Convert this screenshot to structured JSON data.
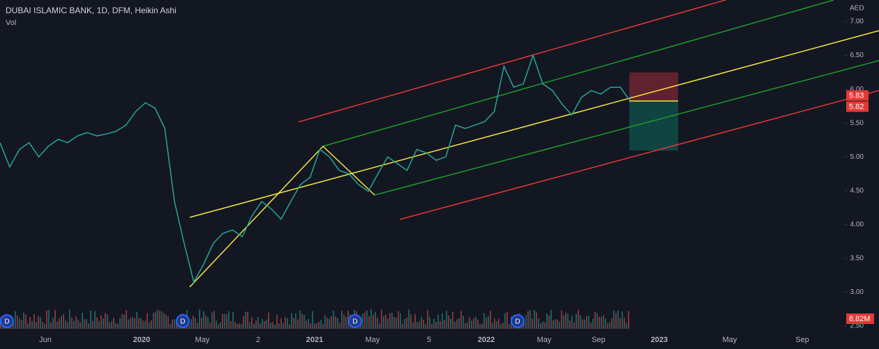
{
  "header": {
    "title": "DUBAI ISLAMIC BANK, 1D, DFM, Heikin Ashi",
    "volume_label": "Vol"
  },
  "chart_data": {
    "type": "line",
    "currency": "AED",
    "color": "#26a69a",
    "x_labels": [
      "Jun",
      "2020",
      "May",
      "2",
      "2021",
      "May",
      "5",
      "2022",
      "May",
      "Sep",
      "2023",
      "May",
      "Sep"
    ],
    "values": [
      5.21,
      4.85,
      5.11,
      5.21,
      5.0,
      5.16,
      5.26,
      5.21,
      5.31,
      5.36,
      5.31,
      5.34,
      5.38,
      5.47,
      5.67,
      5.8,
      5.72,
      5.42,
      4.34,
      3.72,
      3.15,
      3.41,
      3.72,
      3.87,
      3.92,
      3.82,
      4.13,
      4.34,
      4.23,
      4.08,
      4.34,
      4.59,
      4.7,
      5.11,
      5.0,
      4.8,
      4.75,
      4.59,
      4.49,
      4.75,
      5.0,
      4.9,
      4.8,
      5.11,
      5.06,
      4.95,
      5.0,
      5.47,
      5.42,
      5.47,
      5.52,
      5.67,
      6.34,
      6.03,
      6.08,
      6.5,
      6.08,
      5.98,
      5.78,
      5.62,
      5.88,
      5.98,
      5.93,
      6.03,
      6.03,
      5.83
    ],
    "ylim": [
      2.5,
      7.0
    ],
    "yticks": [
      {
        "value": 2.5,
        "label": "2.50"
      },
      {
        "value": 3,
        "label": "3.00"
      },
      {
        "value": 3.5,
        "label": "3.50"
      },
      {
        "value": 4,
        "label": "4.00"
      },
      {
        "value": 4.5,
        "label": "4.50"
      },
      {
        "value": 5,
        "label": "5.00"
      },
      {
        "value": 5.5,
        "label": "5.50"
      },
      {
        "value": 6,
        "label": "6.00"
      },
      {
        "value": 6.5,
        "label": "6.50"
      },
      {
        "value": 7,
        "label": "7.00"
      }
    ],
    "price_badges": [
      {
        "value": 5.83,
        "label": "5.83"
      },
      {
        "value": 5.82,
        "label": "5.82"
      }
    ],
    "volume_badge": "8.82M",
    "dividend_marker": "D"
  }
}
